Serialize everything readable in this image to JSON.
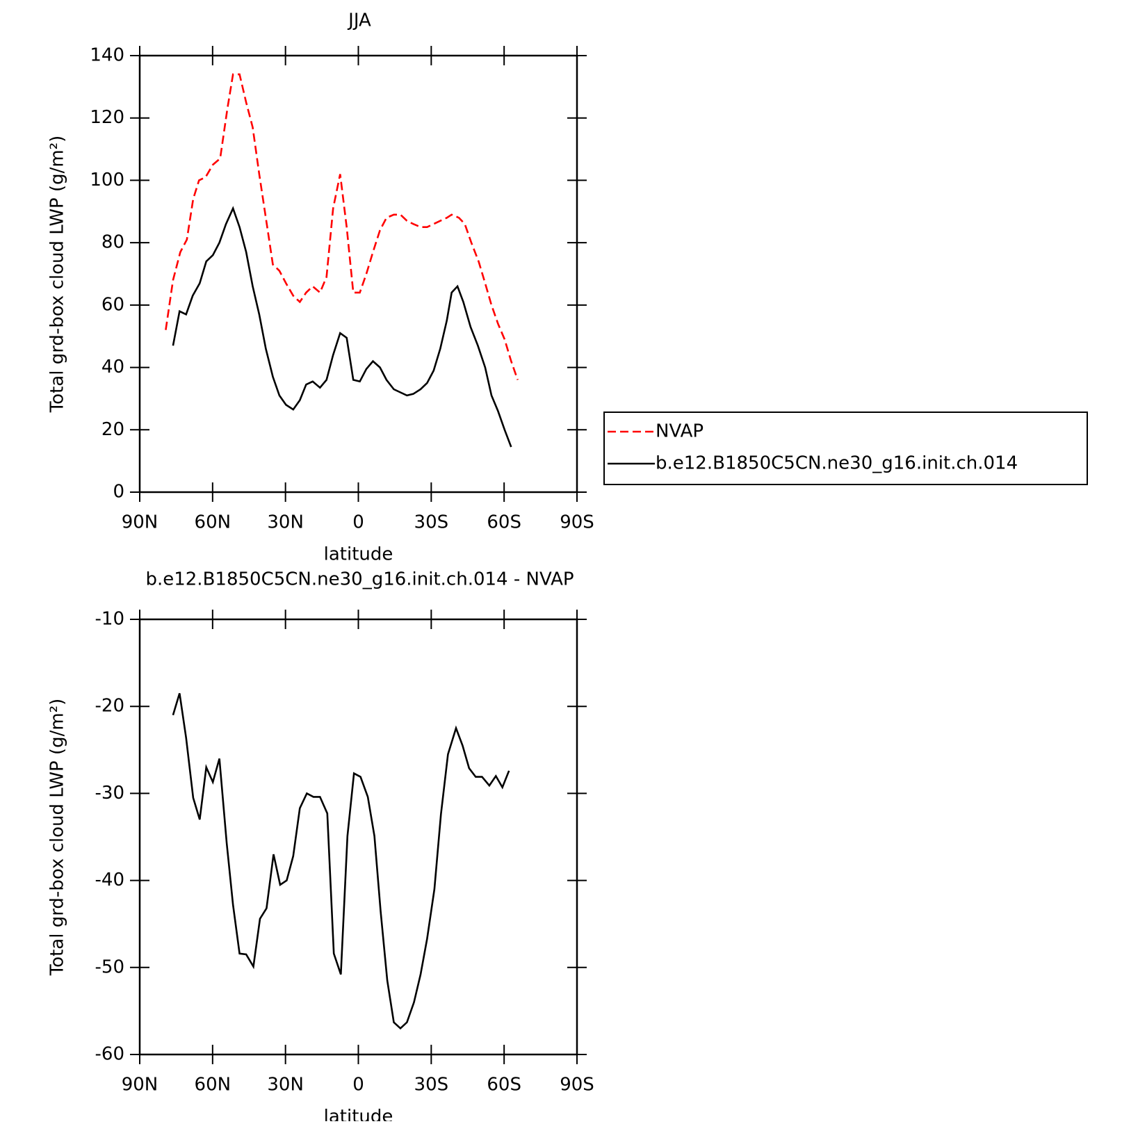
{
  "chart_data": [
    {
      "type": "line",
      "title": "JJA",
      "x_label": "latitude",
      "y_label": "Total grd-box cloud LWP (g/m²)",
      "xlim": [
        90,
        -90
      ],
      "xticks": [
        {
          "value": 90,
          "label": "90N"
        },
        {
          "value": 60,
          "label": "60N"
        },
        {
          "value": 30,
          "label": "30N"
        },
        0,
        {
          "value": -30,
          "label": "30S"
        },
        {
          "value": -60,
          "label": "60S"
        },
        {
          "value": -90,
          "label": "90S"
        }
      ],
      "ylim": [
        0,
        140
      ],
      "yticks": [
        0,
        20,
        40,
        60,
        80,
        100,
        120,
        140
      ],
      "legend": "right",
      "series": [
        {
          "name": "NVAP",
          "color": "#ff0000",
          "linestyle": "dashed",
          "x": [
            79.3,
            76.3,
            73.3,
            70.6,
            68.0,
            65.6,
            62.9,
            59.9,
            56.9,
            53.9,
            51.6,
            48.9,
            46.2,
            43.5,
            40.8,
            38.1,
            35.2,
            32.5,
            29.8,
            26.8,
            24.1,
            21.5,
            18.8,
            15.8,
            13.1,
            10.4,
            7.5,
            4.8,
            2.1,
            -0.6,
            -3.3,
            -6.0,
            -8.9,
            -11.6,
            -14.6,
            -17.3,
            -20.0,
            -22.6,
            -25.6,
            -28.3,
            -31.0,
            -33.7,
            -36.4,
            -38.4,
            -41.4,
            -43.8,
            -46.5,
            -49.5,
            -52.2,
            -54.8,
            -57.5,
            -60.2,
            -62.9,
            -65.6
          ],
          "values": [
            52,
            68,
            77,
            81,
            94,
            100,
            101,
            105,
            107,
            123,
            134,
            134,
            125,
            117,
            102,
            88,
            73,
            71,
            67,
            63,
            61,
            64,
            66,
            64,
            69,
            91,
            102,
            85,
            64,
            64,
            70,
            77,
            84,
            88,
            89,
            89,
            87,
            86,
            85,
            85,
            86,
            87,
            88,
            89,
            88,
            86,
            80,
            74,
            67,
            60,
            54,
            49,
            42,
            36
          ]
        },
        {
          "name": "b.e12.B1850C5CN.ne30_g16.init.ch.014",
          "color": "#000000",
          "linestyle": "solid",
          "x": [
            76.3,
            73.6,
            70.9,
            68.2,
            65.3,
            62.6,
            59.9,
            57.2,
            54.5,
            51.6,
            48.9,
            46.2,
            43.5,
            40.8,
            38.1,
            35.2,
            32.5,
            29.8,
            26.8,
            24.1,
            21.5,
            18.8,
            15.8,
            13.1,
            10.4,
            7.5,
            4.8,
            2.1,
            -0.6,
            -3.3,
            -6.0,
            -8.9,
            -11.6,
            -14.6,
            -17.3,
            -20.0,
            -22.6,
            -25.6,
            -28.3,
            -31.0,
            -33.7,
            -36.4,
            -38.4,
            -40.8,
            -43.2,
            -46.2,
            -49.2,
            -52.2,
            -54.8,
            -57.5,
            -60.2,
            -62.9
          ],
          "values": [
            47,
            58,
            57,
            63,
            67,
            74,
            76,
            80,
            86,
            91,
            85,
            77,
            66,
            57,
            46,
            37,
            31,
            28,
            26.5,
            29.5,
            34.5,
            35.5,
            33.5,
            36,
            44,
            51,
            49.5,
            36,
            35.5,
            39.5,
            42,
            40,
            36,
            33,
            32,
            31,
            31.5,
            33,
            35,
            39,
            46,
            55,
            64,
            66,
            61,
            53,
            47,
            40,
            31,
            26,
            20,
            14.5
          ]
        }
      ]
    },
    {
      "type": "line",
      "title": "b.e12.B1850C5CN.ne30_g16.init.ch.014 - NVAP",
      "x_label": "latitude",
      "y_label": "Total grd-box cloud LWP (g/m²)",
      "xlim": [
        90,
        -90
      ],
      "xticks": [
        {
          "value": 90,
          "label": "90N"
        },
        {
          "value": 60,
          "label": "60N"
        },
        {
          "value": 30,
          "label": "30N"
        },
        0,
        {
          "value": -30,
          "label": "30S"
        },
        {
          "value": -60,
          "label": "60S"
        },
        {
          "value": -90,
          "label": "90S"
        }
      ],
      "ylim": [
        -60,
        -10
      ],
      "yticks": [
        -60,
        -50,
        -40,
        -30,
        -20,
        -10
      ],
      "series": [
        {
          "color": "#000000",
          "linestyle": "solid",
          "x": [
            76.3,
            73.6,
            70.9,
            68.0,
            65.3,
            62.6,
            59.9,
            57.2,
            54.2,
            51.6,
            48.9,
            46.2,
            43.2,
            40.5,
            37.8,
            34.9,
            32.2,
            29.5,
            26.8,
            24.1,
            21.2,
            18.5,
            15.8,
            12.8,
            10.1,
            7.2,
            4.5,
            1.8,
            -0.9,
            -3.9,
            -6.6,
            -9.2,
            -11.9,
            -14.6,
            -17.3,
            -20.0,
            -22.9,
            -25.6,
            -28.3,
            -31.3,
            -34.0,
            -36.9,
            -40.2,
            -42.9,
            -45.6,
            -48.3,
            -50.9,
            -53.9,
            -56.6,
            -59.3,
            -62.0
          ],
          "values": [
            -21.0,
            -18.5,
            -23.6,
            -30.5,
            -33.0,
            -27.0,
            -28.7,
            -26.0,
            -35.7,
            -42.8,
            -48.4,
            -48.5,
            -49.9,
            -44.4,
            -43.2,
            -37.0,
            -40.5,
            -40.0,
            -37.2,
            -31.7,
            -30.0,
            -30.4,
            -30.4,
            -32.3,
            -48.4,
            -50.8,
            -34.9,
            -27.7,
            -28.1,
            -30.4,
            -34.9,
            -43.6,
            -51.5,
            -56.3,
            -57.0,
            -56.3,
            -54.0,
            -50.8,
            -46.7,
            -41.0,
            -32.4,
            -25.5,
            -22.5,
            -24.5,
            -27.1,
            -28.1,
            -28.1,
            -29.1,
            -28.0,
            -29.3,
            -27.4
          ]
        }
      ]
    }
  ]
}
